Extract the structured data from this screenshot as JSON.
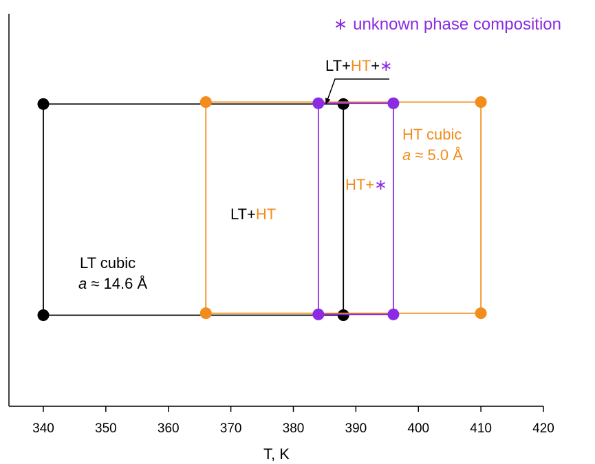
{
  "chart_data": {
    "type": "scatter",
    "xlabel": "T, K",
    "ylabel": "",
    "xlim": [
      334.5,
      420
    ],
    "ylim": [
      0,
      1
    ],
    "x_ticks": [
      340,
      350,
      360,
      370,
      380,
      390,
      400,
      410,
      420
    ],
    "grid": false,
    "colors": {
      "LT": "#000000",
      "HT": "#f28c1c",
      "unknown": "#8b2be2"
    },
    "boxes": [
      {
        "id": "lt",
        "color_key": "LT",
        "x_min": 340,
        "x_max": 388,
        "y_bottom": 0.232,
        "y_top": 0.77
      },
      {
        "id": "ht",
        "color_key": "HT",
        "x_min": 366,
        "x_max": 410,
        "y_bottom": 0.237,
        "y_top": 0.775
      },
      {
        "id": "unknown",
        "color_key": "unknown",
        "x_min": 384,
        "x_max": 396,
        "y_bottom": 0.234,
        "y_top": 0.772
      }
    ],
    "legend_symbol": "∗",
    "legend_text": "unknown phase composition",
    "annotations": {
      "lt_cubic": {
        "line1": "LT cubic",
        "var": "a",
        "value": " ≈ 14.6 Å"
      },
      "ht_cubic": {
        "line1": "HT cubic",
        "var": "a",
        "value": " ≈ 5.0 Å"
      },
      "lt_ht": {
        "part1": "LT+",
        "part2": "HT"
      },
      "ht_star": {
        "part1": "HT+",
        "part2": "∗"
      },
      "lt_ht_star": {
        "part1": "LT+",
        "part2": "HT",
        "part3": "+",
        "part4": "∗"
      }
    }
  }
}
